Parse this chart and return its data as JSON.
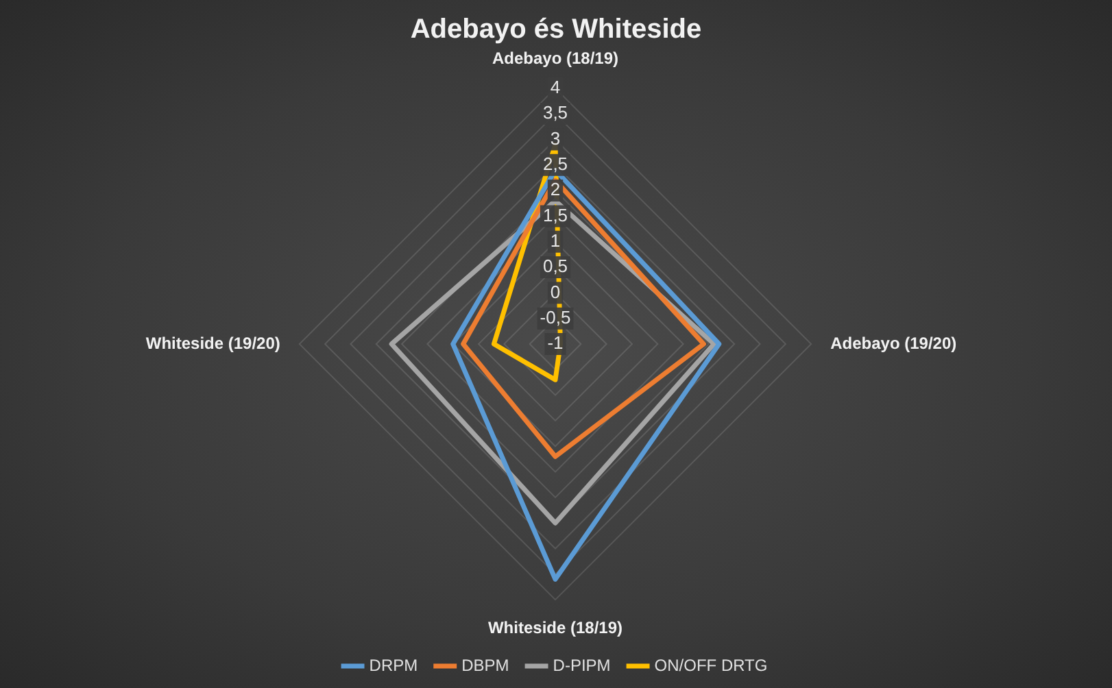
{
  "chart_data": {
    "type": "radar",
    "title": "Adebayo és Whiteside",
    "categories": [
      "Adebayo (18/19)",
      "Adebayo (19/20)",
      "Whiteside (18/19)",
      "Whiteside (19/20)"
    ],
    "series": [
      {
        "name": "DRPM",
        "color": "#5b9bd5",
        "values": [
          2.4,
          2.2,
          3.6,
          1.0
        ]
      },
      {
        "name": "DBPM",
        "color": "#ed7d31",
        "values": [
          2.2,
          1.9,
          1.2,
          0.8
        ]
      },
      {
        "name": "D-PIPM",
        "color": "#a5a5a5",
        "values": [
          1.8,
          2.1,
          2.5,
          2.2
        ]
      },
      {
        "name": "ON/OFF DRTG",
        "color": "#ffc000",
        "values": [
          2.9,
          -0.9,
          -0.3,
          0.2
        ]
      }
    ],
    "ylim": [
      -1,
      4
    ],
    "yticks": [
      {
        "value": -1,
        "label": "-1"
      },
      {
        "value": -0.5,
        "label": "-0,5"
      },
      0,
      {
        "value": 0.5,
        "label": "0,5"
      },
      1,
      {
        "value": 1.5,
        "label": "1,5"
      },
      2,
      {
        "value": 2.5,
        "label": "2,5"
      },
      3,
      {
        "value": 3.5,
        "label": "3,5"
      },
      4
    ],
    "grid": true,
    "legend": "bottom",
    "marker": "none",
    "line_style": "solid"
  }
}
